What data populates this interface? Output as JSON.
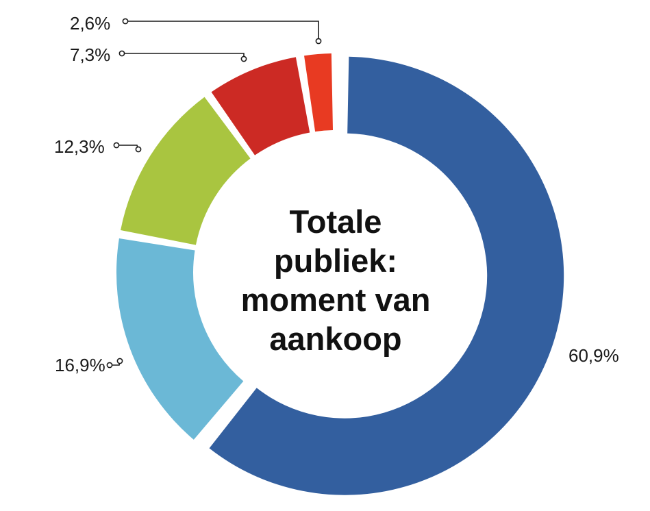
{
  "chart_data": {
    "type": "pie",
    "variant": "donut",
    "title_lines": [
      "Totale",
      "publiek:",
      "moment van",
      "aankoop"
    ],
    "slices": [
      {
        "value": 60.9,
        "label": "60,9%",
        "color": "#335f9f"
      },
      {
        "value": 16.9,
        "label": "16,9%",
        "color": "#6bb8d6"
      },
      {
        "value": 12.3,
        "label": "12,3%",
        "color": "#a9c540"
      },
      {
        "value": 7.3,
        "label": "7,3%",
        "color": "#cc2a24"
      },
      {
        "value": 2.6,
        "label": "2,6%",
        "color": "#e83a22"
      }
    ],
    "legend": "none",
    "label_style": "percentage labels with leader lines"
  }
}
